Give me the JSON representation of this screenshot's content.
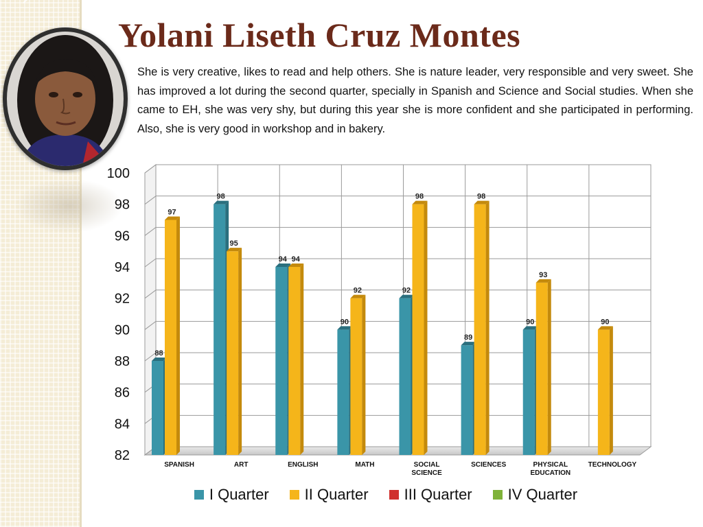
{
  "title": "Yolani Liseth Cruz Montes",
  "description": "She is very creative, likes to read and help others.  She is nature leader, very responsible and  very sweet.  She has improved a lot during the second quarter, specially in Spanish and Science and  Social studies.    When she came to EH, she was very shy, but during this year she is more confident and she  participated in performing. Also, she is very good in workshop and in bakery.",
  "colors": {
    "title": "#6b2a1a",
    "q1": "#3a95a8",
    "q2": "#f5b51a",
    "q3": "#d0312d",
    "q4": "#7fb239"
  },
  "chart_data": {
    "type": "bar",
    "categories": [
      "SPANISH",
      "ART",
      "ENGLISH",
      "MATH",
      "SOCIAL SCIENCE",
      "SCIENCES",
      "PHYSICAL EDUCATION",
      "TECHNOLOGY"
    ],
    "series": [
      {
        "name": "I Quarter",
        "values": [
          88,
          98,
          94,
          90,
          92,
          89,
          90,
          null
        ]
      },
      {
        "name": "II Quarter",
        "values": [
          97,
          95,
          94,
          92,
          98,
          98,
          93,
          90
        ]
      },
      {
        "name": "III Quarter",
        "values": [
          null,
          null,
          null,
          null,
          null,
          null,
          null,
          null
        ]
      },
      {
        "name": "IV Quarter",
        "values": [
          null,
          null,
          null,
          null,
          null,
          null,
          null,
          null
        ]
      }
    ],
    "ylim": [
      82,
      100
    ],
    "yticks": [
      82,
      84,
      86,
      88,
      90,
      92,
      94,
      96,
      98,
      100
    ],
    "grid": true,
    "legend_position": "bottom"
  }
}
